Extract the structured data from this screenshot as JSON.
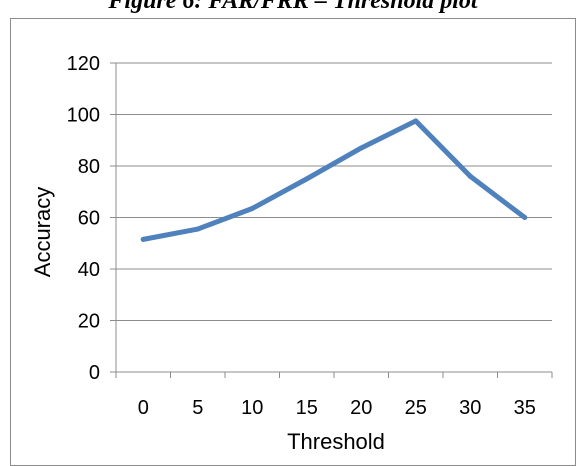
{
  "figure_title": "Figure 6: FAR/FRR – Threshold plot",
  "chart_data": {
    "type": "line",
    "title": "",
    "xlabel": "Threshold",
    "ylabel": "Accuracy",
    "categories": [
      "0",
      "5",
      "10",
      "15",
      "20",
      "25",
      "30",
      "35"
    ],
    "series": [
      {
        "values": [
          51.5,
          55.5,
          63.5,
          75,
          87,
          97.5,
          76,
          60
        ]
      }
    ],
    "ylim": [
      0,
      120
    ],
    "yticks": [
      0,
      20,
      40,
      60,
      80,
      100,
      120
    ],
    "grid": true,
    "legend": "none",
    "line_color": "#4f81bd",
    "grid_color": "#8c8c8c"
  }
}
